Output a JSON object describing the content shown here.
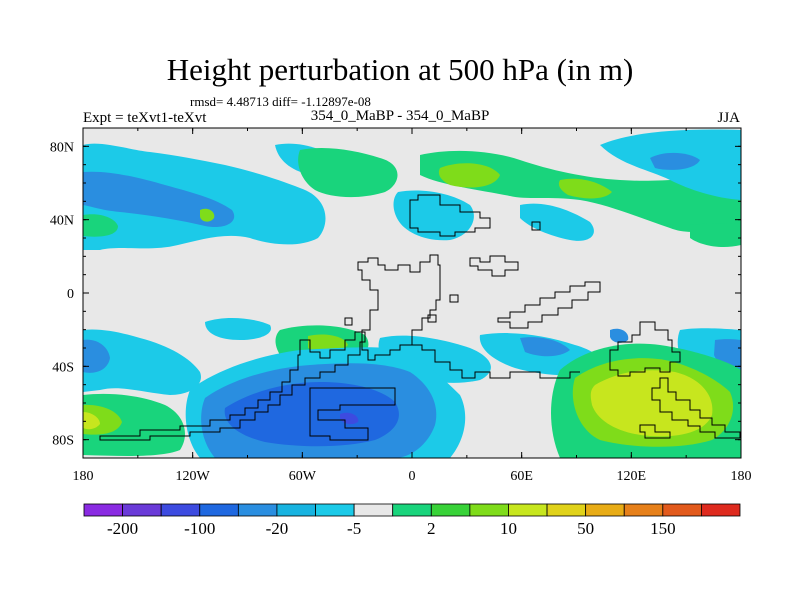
{
  "chart_data": {
    "type": "filled-contour map",
    "title": "Height perturbation at 500 hPa (in m)",
    "stats": "rmsd= 4.48713 diff= -1.12897e-08",
    "experiment": "Expt = teXvt1-teXvt",
    "cases": "354_0_MaBP - 354_0_MaBP",
    "season": "JJA",
    "x_ticks": [
      "180",
      "120W",
      "60W",
      "0",
      "60E",
      "120E",
      "180"
    ],
    "x_tick_lons": [
      -180,
      -120,
      -60,
      0,
      60,
      120,
      180
    ],
    "y_ticks": [
      "80N",
      "40N",
      "0",
      "40S",
      "80S"
    ],
    "y_tick_lats": [
      80,
      40,
      0,
      -40,
      -80
    ],
    "xlim": [
      -180,
      180
    ],
    "ylim": [
      -90,
      90
    ],
    "colorbar": {
      "labels": [
        "-200",
        "-100",
        "-20",
        "-5",
        "2",
        "10",
        "50",
        "150"
      ],
      "colors": [
        "#8a2be2",
        "#6a3ad8",
        "#3d4be0",
        "#1f68e0",
        "#2a8ee0",
        "#17b3e0",
        "#1ccae8",
        "#e8e8e8",
        "#19d47c",
        "#38d238",
        "#7fdc1a",
        "#c7e61e",
        "#e0d21a",
        "#e8ac16",
        "#e6801a",
        "#e25a1c",
        "#de2a1e"
      ]
    }
  }
}
